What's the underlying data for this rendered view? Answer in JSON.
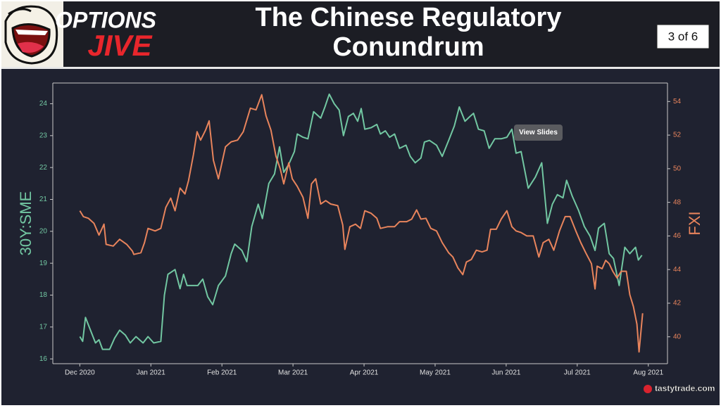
{
  "header": {
    "logo_top": "OPTIONS",
    "logo_bottom": "JIVE",
    "title": "The Chinese Regulatory Conundrum",
    "page_indicator": "3 of 6"
  },
  "view_slides": "View Slides",
  "watermark": "tastytrade.com",
  "chart_data": {
    "type": "line",
    "ylabel": "30Y:SME",
    "y2label": "FXI",
    "xlim": [
      -0.38,
      8.27
    ],
    "xticks": [
      {
        "value": 0,
        "label": "Dec 2020"
      },
      {
        "value": 1,
        "label": "Jan 2021"
      },
      {
        "value": 2,
        "label": "Feb 2021"
      },
      {
        "value": 3,
        "label": "Mar 2021"
      },
      {
        "value": 4,
        "label": "Apr 2021"
      },
      {
        "value": 5,
        "label": "May 2021"
      },
      {
        "value": 6,
        "label": "Jun 2021"
      },
      {
        "value": 7,
        "label": "Jul 2021"
      },
      {
        "value": 8,
        "label": "Aug 2021"
      }
    ],
    "ylim": [
      15.85,
      24.65
    ],
    "yticks": [
      16,
      17,
      18,
      19,
      20,
      21,
      22,
      23,
      24
    ],
    "y2lim": [
      38.4,
      55.1
    ],
    "y2ticks": [
      40,
      42,
      44,
      46,
      48,
      50,
      52,
      54
    ],
    "series": [
      {
        "name": "30Y:SME",
        "color": "#72c7a2",
        "axis": "y",
        "x": [
          0.0,
          0.04,
          0.08,
          0.15,
          0.22,
          0.27,
          0.32,
          0.42,
          0.49,
          0.56,
          0.64,
          0.71,
          0.79,
          0.89,
          0.96,
          1.04,
          1.14,
          1.19,
          1.24,
          1.34,
          1.41,
          1.46,
          1.51,
          1.66,
          1.73,
          1.8,
          1.87,
          1.95,
          2.05,
          2.13,
          2.18,
          2.28,
          2.35,
          2.42,
          2.51,
          2.57,
          2.66,
          2.74,
          2.81,
          2.87,
          2.94,
          3.02,
          3.06,
          3.14,
          3.21,
          3.29,
          3.39,
          3.45,
          3.51,
          3.58,
          3.65,
          3.71,
          3.78,
          3.85,
          3.91,
          3.96,
          4.01,
          4.1,
          4.18,
          4.23,
          4.3,
          4.36,
          4.43,
          4.5,
          4.59,
          4.65,
          4.72,
          4.8,
          4.85,
          4.92,
          5.02,
          5.1,
          5.19,
          5.27,
          5.34,
          5.42,
          5.49,
          5.54,
          5.61,
          5.69,
          5.76,
          5.84,
          5.93,
          6.01,
          6.08,
          6.14,
          6.21,
          6.31,
          6.41,
          6.5,
          6.58,
          6.65,
          6.72,
          6.8,
          6.85,
          6.93,
          7.02,
          7.1,
          7.18,
          7.25,
          7.3,
          7.38,
          7.45,
          7.51,
          7.59,
          7.67,
          7.74,
          7.82,
          7.86,
          7.91
        ],
        "values": [
          16.7,
          16.55,
          17.3,
          16.9,
          16.5,
          16.6,
          16.3,
          16.3,
          16.65,
          16.9,
          16.75,
          16.5,
          16.7,
          16.5,
          16.7,
          16.5,
          16.55,
          18.0,
          18.65,
          18.8,
          18.2,
          18.65,
          18.3,
          18.3,
          18.5,
          17.95,
          17.7,
          18.3,
          18.6,
          19.3,
          19.6,
          19.4,
          19.05,
          20.15,
          20.85,
          20.4,
          21.5,
          21.8,
          22.65,
          21.85,
          22.1,
          22.5,
          23.05,
          22.95,
          22.9,
          23.75,
          23.55,
          23.9,
          24.3,
          24.0,
          23.8,
          23.0,
          23.6,
          23.7,
          23.45,
          23.85,
          23.2,
          23.25,
          23.35,
          23.05,
          23.15,
          22.95,
          23.05,
          22.6,
          22.7,
          22.35,
          22.15,
          22.3,
          22.8,
          22.85,
          22.7,
          22.35,
          22.85,
          23.3,
          23.9,
          23.45,
          23.6,
          23.7,
          23.2,
          23.15,
          22.6,
          22.9,
          22.9,
          22.95,
          23.2,
          22.45,
          22.5,
          21.35,
          21.7,
          22.15,
          20.25,
          20.85,
          21.15,
          21.05,
          21.6,
          21.1,
          20.65,
          20.15,
          19.85,
          19.4,
          20.1,
          20.25,
          19.3,
          19.15,
          18.3,
          19.5,
          19.3,
          19.5,
          19.1,
          19.25
        ]
      },
      {
        "name": "FXI",
        "color": "#e8845c",
        "axis": "y2",
        "x": [
          0.0,
          0.05,
          0.12,
          0.2,
          0.27,
          0.34,
          0.37,
          0.47,
          0.56,
          0.66,
          0.74,
          0.76,
          0.86,
          0.91,
          0.96,
          1.06,
          1.14,
          1.21,
          1.28,
          1.34,
          1.41,
          1.48,
          1.53,
          1.6,
          1.65,
          1.7,
          1.77,
          1.82,
          1.88,
          1.95,
          2.05,
          2.13,
          2.22,
          2.3,
          2.4,
          2.48,
          2.56,
          2.62,
          2.69,
          2.76,
          2.82,
          2.87,
          2.94,
          2.99,
          3.06,
          3.14,
          3.21,
          3.26,
          3.32,
          3.39,
          3.46,
          3.53,
          3.63,
          3.7,
          3.73,
          3.8,
          3.88,
          3.95,
          4.01,
          4.1,
          4.18,
          4.23,
          4.33,
          4.43,
          4.5,
          4.6,
          4.67,
          4.74,
          4.8,
          4.87,
          4.94,
          5.02,
          5.1,
          5.19,
          5.25,
          5.32,
          5.39,
          5.44,
          5.51,
          5.58,
          5.66,
          5.73,
          5.78,
          5.86,
          5.93,
          6.01,
          6.08,
          6.14,
          6.21,
          6.29,
          6.38,
          6.46,
          6.52,
          6.6,
          6.67,
          6.75,
          6.83,
          6.9,
          6.98,
          7.05,
          7.12,
          7.2,
          7.25,
          7.28,
          7.35,
          7.4,
          7.45,
          7.5,
          7.56,
          7.62,
          7.69,
          7.74,
          7.79,
          7.84,
          7.87,
          7.92
        ],
        "values": [
          47.5,
          47.15,
          47.05,
          46.75,
          46.05,
          46.7,
          45.5,
          45.4,
          45.8,
          45.5,
          45.1,
          44.9,
          45.0,
          45.6,
          46.45,
          46.3,
          46.45,
          47.7,
          48.25,
          47.5,
          48.85,
          48.5,
          49.3,
          50.85,
          52.2,
          51.7,
          52.3,
          52.85,
          50.5,
          49.4,
          51.3,
          51.6,
          51.7,
          52.2,
          53.6,
          53.5,
          54.4,
          53.15,
          52.3,
          50.75,
          50.0,
          49.1,
          50.35,
          49.4,
          48.95,
          48.3,
          47.05,
          49.1,
          49.4,
          47.9,
          48.1,
          47.9,
          47.8,
          46.65,
          45.2,
          46.55,
          46.7,
          46.45,
          47.5,
          47.35,
          47.05,
          46.45,
          46.55,
          46.55,
          46.85,
          46.85,
          47.0,
          47.55,
          47.0,
          47.05,
          46.45,
          46.3,
          45.6,
          45.0,
          44.75,
          44.1,
          43.7,
          44.45,
          44.6,
          45.15,
          45.05,
          45.15,
          46.4,
          46.4,
          47.0,
          47.5,
          46.55,
          46.3,
          46.2,
          46.0,
          46.0,
          44.75,
          45.6,
          45.8,
          45.15,
          46.3,
          47.15,
          47.15,
          46.3,
          45.6,
          45.0,
          44.35,
          42.85,
          44.2,
          44.05,
          44.55,
          44.35,
          43.9,
          43.5,
          43.9,
          43.9,
          42.5,
          41.8,
          40.75,
          39.1,
          41.4
        ]
      }
    ]
  }
}
